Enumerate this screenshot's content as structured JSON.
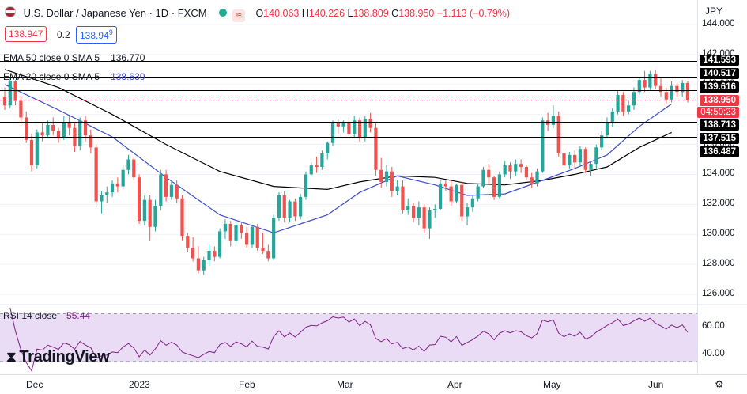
{
  "header": {
    "symbol_title": "U.S. Dollar / Japanese Yen · 1D · FXCM",
    "ohlc_o_label": "O",
    "ohlc_o": "140.063",
    "ohlc_h_label": "H",
    "ohlc_h": "140.226",
    "ohlc_l_label": "L",
    "ohlc_l": "138.809",
    "ohlc_c_label": "C",
    "ohlc_c": "138.950",
    "change": "−1.113 (−0.79%)"
  },
  "trade": {
    "sell_price": "138.947",
    "spread": "0.2",
    "buy_price": "138.94",
    "buy_sup": "9"
  },
  "indicators": {
    "ema50_label": "EMA 50 close 0 SMA 5",
    "ema50_value": "136.770",
    "ema20_label": "EMA 20 close 0 SMA 5",
    "ema20_value": "138.630"
  },
  "currency": "JPY",
  "price_tags": [
    "141.593",
    "140.517",
    "139.616",
    "138.713",
    "137.515",
    "136.487"
  ],
  "current_price": "138.950",
  "countdown": "04:50:23",
  "rsi": {
    "label": "RSI 14 close",
    "value": "55.44"
  },
  "brand": "TradingView",
  "colors": {
    "up": "#26a69a",
    "down": "#ef5350",
    "ema20": "#3c4cc9",
    "ema50": "#000000",
    "rsi": "#7e1f86",
    "rsi_band": "#ebdcf5"
  },
  "chart_data": {
    "type": "candlestick",
    "title": "U.S. Dollar / Japanese Yen · 1D · FXCM",
    "y_ticks": [
      "144.000",
      "142.000",
      "140.000",
      "138.000",
      "136.000",
      "134.000",
      "132.000",
      "130.000",
      "128.000",
      "126.000"
    ],
    "y_range": [
      126,
      144
    ],
    "x_labels": [
      "Dec",
      "2023",
      "Feb",
      "Mar",
      "Apr",
      "May",
      "Jun"
    ],
    "horizontal_levels": [
      141.593,
      140.517,
      139.616,
      138.713,
      137.515,
      136.487
    ],
    "candles": [
      [
        139.2,
        139.8,
        138.3,
        138.6
      ],
      [
        138.6,
        140.4,
        138.4,
        140.2
      ],
      [
        140.2,
        140.3,
        138.6,
        138.9
      ],
      [
        138.9,
        139.2,
        137.4,
        137.8
      ],
      [
        137.8,
        138.2,
        136.1,
        136.3
      ],
      [
        136.3,
        136.7,
        134.2,
        134.6
      ],
      [
        134.6,
        137.0,
        134.4,
        136.8
      ],
      [
        136.8,
        137.4,
        136.2,
        136.6
      ],
      [
        136.6,
        137.6,
        136.4,
        137.3
      ],
      [
        137.3,
        137.8,
        136.6,
        136.9
      ],
      [
        136.9,
        137.1,
        136.1,
        136.4
      ],
      [
        136.4,
        137.9,
        136.3,
        137.5
      ],
      [
        137.5,
        137.9,
        136.6,
        137.1
      ],
      [
        137.1,
        137.4,
        135.5,
        135.9
      ],
      [
        135.9,
        137.8,
        135.6,
        137.6
      ],
      [
        137.6,
        137.9,
        136.2,
        136.6
      ],
      [
        136.6,
        137.0,
        135.4,
        135.8
      ],
      [
        135.8,
        136.0,
        131.8,
        132.2
      ],
      [
        132.2,
        132.9,
        131.4,
        132.6
      ],
      [
        132.6,
        133.2,
        132.1,
        132.8
      ],
      [
        132.8,
        133.6,
        132.5,
        133.4
      ],
      [
        133.4,
        133.8,
        132.8,
        133.2
      ],
      [
        133.2,
        134.6,
        133.0,
        134.3
      ],
      [
        134.3,
        135.3,
        134.0,
        135.0
      ],
      [
        135.0,
        135.2,
        133.6,
        133.8
      ],
      [
        133.8,
        134.0,
        130.7,
        130.9
      ],
      [
        130.9,
        132.6,
        130.6,
        132.3
      ],
      [
        132.3,
        132.6,
        129.6,
        130.5
      ],
      [
        130.5,
        132.3,
        130.2,
        131.9
      ],
      [
        131.9,
        134.3,
        131.6,
        134.0
      ],
      [
        134.0,
        134.3,
        132.2,
        132.5
      ],
      [
        132.5,
        133.6,
        132.3,
        133.3
      ],
      [
        133.3,
        133.6,
        132.1,
        132.4
      ],
      [
        132.4,
        132.6,
        129.6,
        129.9
      ],
      [
        129.9,
        130.1,
        128.8,
        129.1
      ],
      [
        129.1,
        129.8,
        128.2,
        128.4
      ],
      [
        128.4,
        129.2,
        127.4,
        127.6
      ],
      [
        127.6,
        128.5,
        127.3,
        128.3
      ],
      [
        128.3,
        129.3,
        127.9,
        128.9
      ],
      [
        128.9,
        129.2,
        128.2,
        128.5
      ],
      [
        128.5,
        130.4,
        128.4,
        130.2
      ],
      [
        130.2,
        131.0,
        129.7,
        130.7
      ],
      [
        130.7,
        130.9,
        129.2,
        129.6
      ],
      [
        129.6,
        130.8,
        129.4,
        130.6
      ],
      [
        130.6,
        130.8,
        129.7,
        130.1
      ],
      [
        130.1,
        130.5,
        129.1,
        129.3
      ],
      [
        129.3,
        130.6,
        129.1,
        130.5
      ],
      [
        130.5,
        130.7,
        128.9,
        129.1
      ],
      [
        129.1,
        130.1,
        128.7,
        128.9
      ],
      [
        128.9,
        129.3,
        128.2,
        128.4
      ],
      [
        128.4,
        131.3,
        128.3,
        131.1
      ],
      [
        131.1,
        132.8,
        130.9,
        132.6
      ],
      [
        132.6,
        132.9,
        130.8,
        131.1
      ],
      [
        131.1,
        132.3,
        130.8,
        132.2
      ],
      [
        132.2,
        132.4,
        130.9,
        131.2
      ],
      [
        131.2,
        132.7,
        131.0,
        132.5
      ],
      [
        132.5,
        134.2,
        132.3,
        134.0
      ],
      [
        134.0,
        134.8,
        133.9,
        134.6
      ],
      [
        134.6,
        135.2,
        134.1,
        134.5
      ],
      [
        134.5,
        135.6,
        134.3,
        135.4
      ],
      [
        135.4,
        136.2,
        135.0,
        136.1
      ],
      [
        136.1,
        137.6,
        135.9,
        137.4
      ],
      [
        137.4,
        137.7,
        136.7,
        137.2
      ],
      [
        137.2,
        137.6,
        136.8,
        137.5
      ],
      [
        137.5,
        137.8,
        136.4,
        136.7
      ],
      [
        136.7,
        137.9,
        136.5,
        137.6
      ],
      [
        137.6,
        137.8,
        136.2,
        136.5
      ],
      [
        136.5,
        137.9,
        136.2,
        137.7
      ],
      [
        137.7,
        138.1,
        136.8,
        137.1
      ],
      [
        137.1,
        137.4,
        133.9,
        134.3
      ],
      [
        134.3,
        135.1,
        133.1,
        133.5
      ],
      [
        133.5,
        134.6,
        133.2,
        134.2
      ],
      [
        134.2,
        134.5,
        132.5,
        132.9
      ],
      [
        132.9,
        133.6,
        132.6,
        133.2
      ],
      [
        133.2,
        133.6,
        131.4,
        131.6
      ],
      [
        131.6,
        132.4,
        131.3,
        131.9
      ],
      [
        131.9,
        132.1,
        130.8,
        131.1
      ],
      [
        131.1,
        132.2,
        130.6,
        131.8
      ],
      [
        131.8,
        132.0,
        130.1,
        130.4
      ],
      [
        130.4,
        131.8,
        129.7,
        131.6
      ],
      [
        131.6,
        132.0,
        131.1,
        131.7
      ],
      [
        131.7,
        133.6,
        131.6,
        133.4
      ],
      [
        133.4,
        133.6,
        132.9,
        133.2
      ],
      [
        133.2,
        133.6,
        131.9,
        132.2
      ],
      [
        132.2,
        133.4,
        132.1,
        133.3
      ],
      [
        133.3,
        133.5,
        130.9,
        131.2
      ],
      [
        131.2,
        132.1,
        130.6,
        131.8
      ],
      [
        131.8,
        132.6,
        131.5,
        132.4
      ],
      [
        132.4,
        133.4,
        132.2,
        133.2
      ],
      [
        133.2,
        134.5,
        133.1,
        134.3
      ],
      [
        134.3,
        134.7,
        133.4,
        133.8
      ],
      [
        133.8,
        133.9,
        132.3,
        132.5
      ],
      [
        132.5,
        134.2,
        132.4,
        134.0
      ],
      [
        134.0,
        134.9,
        133.8,
        134.6
      ],
      [
        134.6,
        134.8,
        133.7,
        134.2
      ],
      [
        134.2,
        135.0,
        133.9,
        134.7
      ],
      [
        134.7,
        135.0,
        134.1,
        134.5
      ],
      [
        134.5,
        134.6,
        133.6,
        133.8
      ],
      [
        133.8,
        134.1,
        133.1,
        133.4
      ],
      [
        133.4,
        134.4,
        133.2,
        134.2
      ],
      [
        134.2,
        137.8,
        134.1,
        137.6
      ],
      [
        137.6,
        138.1,
        136.9,
        137.3
      ],
      [
        137.3,
        138.6,
        137.1,
        137.9
      ],
      [
        137.9,
        138.2,
        135.2,
        135.4
      ],
      [
        135.4,
        135.6,
        134.3,
        134.6
      ],
      [
        134.6,
        135.5,
        134.4,
        135.3
      ],
      [
        135.3,
        135.6,
        134.4,
        134.8
      ],
      [
        134.8,
        135.9,
        134.5,
        135.7
      ],
      [
        135.7,
        135.8,
        134.1,
        134.3
      ],
      [
        134.3,
        134.9,
        133.9,
        134.7
      ],
      [
        134.7,
        136.0,
        134.4,
        135.8
      ],
      [
        135.8,
        136.9,
        135.6,
        136.6
      ],
      [
        136.6,
        137.8,
        136.4,
        137.5
      ],
      [
        137.5,
        138.4,
        137.2,
        138.2
      ],
      [
        138.2,
        139.6,
        138.0,
        139.3
      ],
      [
        139.3,
        139.5,
        137.9,
        138.2
      ],
      [
        138.2,
        138.9,
        138.0,
        138.6
      ],
      [
        138.6,
        139.8,
        138.3,
        139.5
      ],
      [
        139.5,
        140.5,
        139.3,
        140.3
      ],
      [
        140.3,
        140.9,
        139.5,
        139.8
      ],
      [
        139.8,
        140.9,
        139.6,
        140.7
      ],
      [
        140.7,
        141.0,
        139.7,
        139.9
      ],
      [
        139.9,
        140.4,
        139.2,
        139.5
      ],
      [
        139.5,
        139.8,
        138.7,
        139.0
      ],
      [
        139.0,
        140.2,
        138.8,
        139.9
      ],
      [
        139.9,
        140.1,
        139.2,
        139.5
      ],
      [
        139.5,
        140.3,
        139.2,
        140.1
      ],
      [
        140.1,
        140.2,
        138.8,
        138.95
      ]
    ],
    "ema20": [
      [
        0,
        140.0
      ],
      [
        10,
        138.3
      ],
      [
        20,
        136.5
      ],
      [
        30,
        133.8
      ],
      [
        40,
        131.3
      ],
      [
        50,
        130.1
      ],
      [
        60,
        131.3
      ],
      [
        66,
        132.8
      ],
      [
        73,
        133.9
      ],
      [
        80,
        133.3
      ],
      [
        86,
        132.6
      ],
      [
        93,
        132.7
      ],
      [
        100,
        133.6
      ],
      [
        106,
        134.4
      ],
      [
        112,
        135.3
      ],
      [
        118,
        137.2
      ],
      [
        124,
        138.7
      ]
    ],
    "ema50": [
      [
        0,
        141.0
      ],
      [
        10,
        139.8
      ],
      [
        20,
        138.0
      ],
      [
        30,
        136.0
      ],
      [
        40,
        134.2
      ],
      [
        50,
        133.2
      ],
      [
        60,
        133.0
      ],
      [
        66,
        133.5
      ],
      [
        73,
        133.9
      ],
      [
        80,
        133.8
      ],
      [
        86,
        133.4
      ],
      [
        93,
        133.3
      ],
      [
        100,
        133.6
      ],
      [
        106,
        134.0
      ],
      [
        112,
        134.5
      ],
      [
        118,
        135.8
      ],
      [
        124,
        136.8
      ]
    ],
    "rsi_levels": [
      70,
      30
    ],
    "rsi_ticks": [
      "60.00",
      "40.00"
    ],
    "rsi_range": [
      22,
      75
    ]
  }
}
